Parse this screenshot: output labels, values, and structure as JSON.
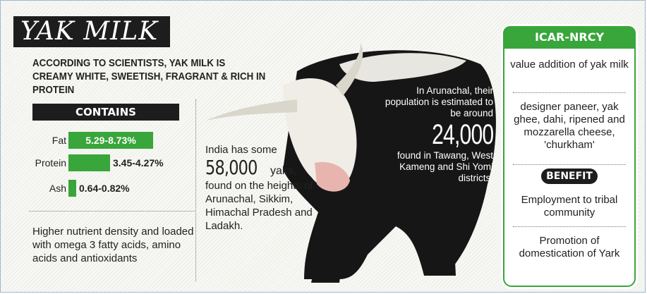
{
  "title": "YAK MILK",
  "intro": "ACCORDING TO SCIENTISTS, YAK MILK IS CREAMY WHITE, SWEETISH, FRAGRANT & RICH IN PROTEIN",
  "contains": {
    "header": "CONTAINS",
    "items": [
      {
        "label": "Fat",
        "value": "5.29-8.73%",
        "max_percent": 8.73
      },
      {
        "label": "Protein",
        "value": "3.45-4.27%",
        "max_percent": 4.27
      },
      {
        "label": "Ash",
        "value": "0.64-0.82%",
        "max_percent": 0.82
      }
    ]
  },
  "nutrient_text": "Higher nutrient density and loaded with omega 3 fatty acids, amino acids and antioxidants",
  "india": {
    "prefix": "India has some",
    "number": "58,000",
    "unit": "yaks,",
    "suffix": "found on the heights of Arunachal, Sikkim, Himachal Pradesh and Ladakh."
  },
  "arunachal": {
    "prefix": "In Arunachal, their population is estimated to be around",
    "number": "24,000",
    "suffix": "found in Tawang, West Kameng and Shi Yomi districts."
  },
  "panel": {
    "header": "ICAR-NRCY",
    "item1": "value addition of yak milk",
    "item2": "designer paneer, yak ghee, dahi, ripened and mozzarella cheese, 'churkham'",
    "benefit_label": "BENEFIT",
    "benefit1": "Employment to tribal community",
    "benefit2": "Promotion of domestication of Yark"
  },
  "colors": {
    "accent_green": "#38a63a",
    "dark": "#1d1d1d"
  }
}
